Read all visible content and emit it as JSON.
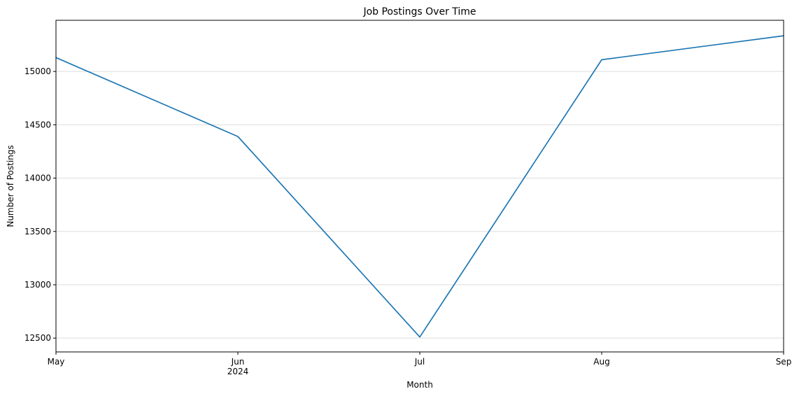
{
  "chart_data": {
    "type": "line",
    "title": "Job Postings Over Time",
    "xlabel": "Month",
    "ylabel": "Number of Postings",
    "x": [
      "2024-05",
      "2024-06",
      "2024-07",
      "2024-08",
      "2024-09"
    ],
    "x_tick_labels": [
      "May",
      "Jun",
      "Jul",
      "Aug",
      "Sep"
    ],
    "x_tick_sublabel": {
      "index": 1,
      "text": "2024"
    },
    "series": [
      {
        "values": [
          15130,
          14390,
          12510,
          15110,
          15335
        ]
      }
    ],
    "y_ticks": [
      12500,
      13000,
      13500,
      14000,
      14500,
      15000
    ],
    "ylim": [
      12370,
      15480
    ],
    "grid": {
      "y": true,
      "x": false
    },
    "colors": {
      "line": "#1f77b4",
      "grid": "#dddddd",
      "axis": "#000000"
    }
  }
}
